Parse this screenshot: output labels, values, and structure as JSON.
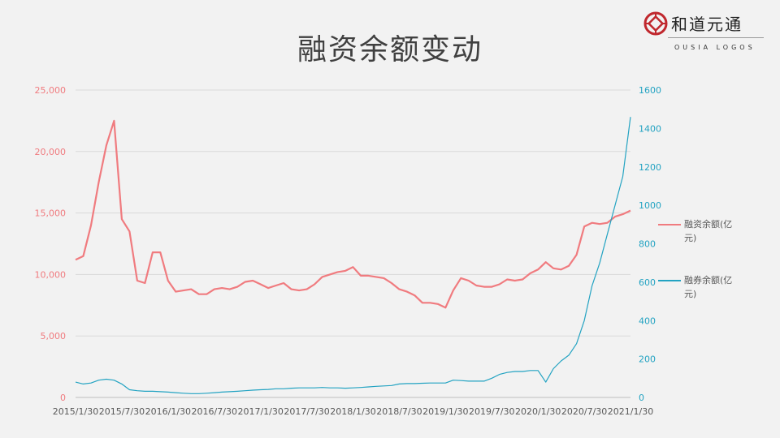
{
  "title": "融资余额变动",
  "logo": {
    "cn": "和道元通",
    "en": "OUSIA LOGOS"
  },
  "colors": {
    "financing": "#f07b7f",
    "lending": "#23a3c2",
    "grid": "#d9d9d9"
  },
  "chart_data": {
    "type": "line",
    "title": "融资余额变动",
    "x_ticks": [
      "2015/1/30",
      "2015/7/30",
      "2016/1/30",
      "2016/7/30",
      "2017/1/30",
      "2017/7/30",
      "2018/1/30",
      "2018/7/30",
      "2019/1/30",
      "2019/7/30",
      "2020/1/30",
      "2020/7/30",
      "2021/1/30"
    ],
    "x_start": "2015/1/30",
    "x_step_months": 1,
    "y_left": {
      "range": [
        0,
        25000
      ],
      "ticks": [
        "0",
        "5,000",
        "10,000",
        "15,000",
        "20,000",
        "25,000"
      ],
      "tick_values": [
        0,
        5000,
        10000,
        15000,
        20000,
        25000
      ]
    },
    "y_right": {
      "range": [
        0,
        1600
      ],
      "ticks": [
        "0",
        "200",
        "400",
        "600",
        "800",
        "1000",
        "1200",
        "1400",
        "1600"
      ],
      "tick_values": [
        0,
        200,
        400,
        600,
        800,
        1000,
        1200,
        1400,
        1600
      ]
    },
    "grid": true,
    "legend_position": "right",
    "series": [
      {
        "name": "融资余额(亿元)",
        "axis": "left",
        "values": [
          11200,
          11500,
          14000,
          17500,
          20500,
          22500,
          14500,
          13500,
          9500,
          9300,
          11800,
          11800,
          9500,
          8600,
          8700,
          8800,
          8400,
          8400,
          8800,
          8900,
          8800,
          9000,
          9400,
          9500,
          9200,
          8900,
          9100,
          9300,
          8800,
          8700,
          8800,
          9200,
          9800,
          10000,
          10200,
          10300,
          10600,
          9900,
          9900,
          9800,
          9700,
          9300,
          8800,
          8600,
          8300,
          7700,
          7700,
          7600,
          7300,
          8700,
          9700,
          9500,
          9100,
          9000,
          9000,
          9200,
          9600,
          9500,
          9600,
          10100,
          10400,
          11000,
          10500,
          10400,
          10700,
          11600,
          13900,
          14200,
          14100,
          14200,
          14700,
          14900,
          15200
        ]
      },
      {
        "name": "融券余额(亿元)",
        "axis": "right",
        "values": [
          80,
          70,
          75,
          90,
          95,
          90,
          70,
          40,
          35,
          32,
          32,
          30,
          28,
          25,
          22,
          20,
          20,
          22,
          25,
          28,
          30,
          32,
          35,
          38,
          40,
          42,
          45,
          45,
          48,
          50,
          50,
          50,
          52,
          50,
          50,
          48,
          50,
          52,
          55,
          58,
          60,
          62,
          70,
          72,
          72,
          74,
          75,
          75,
          75,
          90,
          88,
          85,
          85,
          85,
          100,
          120,
          130,
          135,
          135,
          140,
          140,
          80,
          150,
          190,
          220,
          280,
          400,
          580,
          700,
          850,
          1000,
          1150,
          1460
        ]
      }
    ]
  }
}
